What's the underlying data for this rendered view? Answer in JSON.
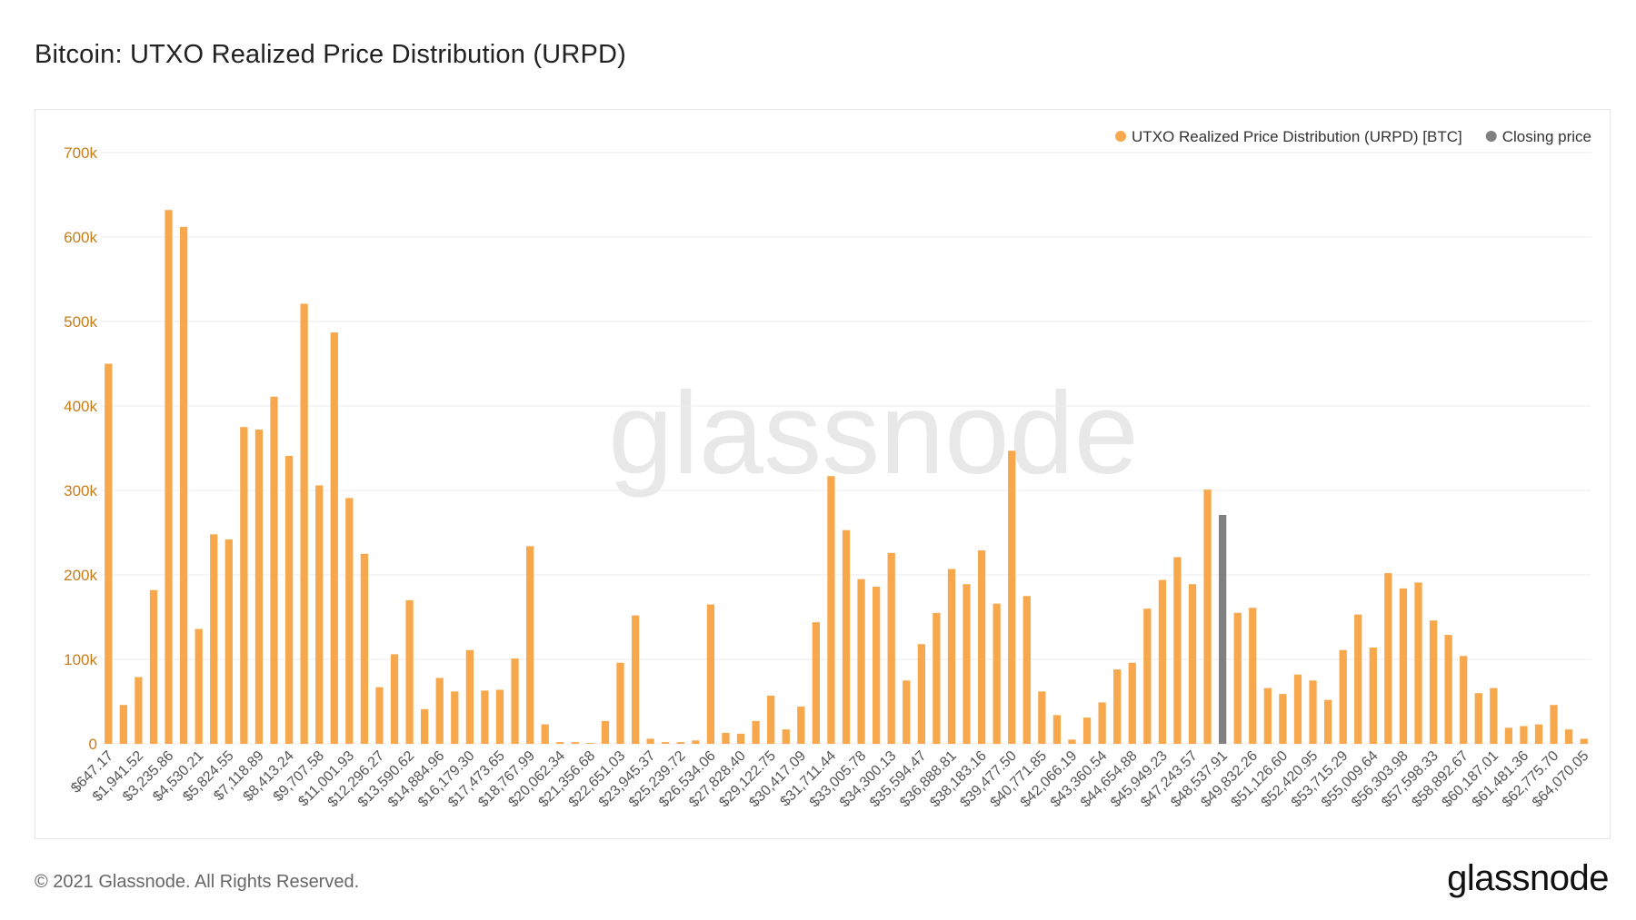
{
  "title": "Bitcoin: UTXO Realized Price Distribution (URPD)",
  "watermark": "glassnode",
  "footer": {
    "copyright": "© 2021 Glassnode. All Rights Reserved.",
    "logo": "glassnode"
  },
  "colors": {
    "bar": "#F7A84D",
    "closing": "#808080",
    "axis_text": "#C97D17",
    "grid": "#EEEEEE"
  },
  "chart_data": {
    "type": "bar",
    "legend": {
      "placement": "top-right",
      "items": [
        {
          "label": "UTXO Realized Price Distribution (URPD) [BTC]",
          "color": "#F7A84D"
        },
        {
          "label": "Closing price",
          "color": "#808080"
        }
      ]
    },
    "ylim": [
      0,
      700000
    ],
    "yticks": [
      {
        "value": 0,
        "label": "0"
      },
      {
        "value": 100000,
        "label": "100k"
      },
      {
        "value": 200000,
        "label": "200k"
      },
      {
        "value": 300000,
        "label": "300k"
      },
      {
        "value": 400000,
        "label": "400k"
      },
      {
        "value": 500000,
        "label": "500k"
      },
      {
        "value": 600000,
        "label": "600k"
      },
      {
        "value": 700000,
        "label": "700k"
      }
    ],
    "grid": true,
    "x_tick_labels": [
      "$647.17",
      "$1,941.52",
      "$3,235.86",
      "$4,530.21",
      "$5,824.55",
      "$7,118.89",
      "$8,413.24",
      "$9,707.58",
      "$11,001.93",
      "$12,296.27",
      "$13,590.62",
      "$14,884.96",
      "$16,179.30",
      "$17,473.65",
      "$18,767.99",
      "$20,062.34",
      "$21,356.68",
      "$22,651.03",
      "$23,945.37",
      "$25,239.72",
      "$26,534.06",
      "$27,828.40",
      "$29,122.75",
      "$30,417.09",
      "$31,711.44",
      "$33,005.78",
      "$34,300.13",
      "$35,594.47",
      "$36,888.81",
      "$38,183.16",
      "$39,477.50",
      "$40,771.85",
      "$42,066.19",
      "$43,360.54",
      "$44,654.88",
      "$45,949.23",
      "$47,243.57",
      "$48,537.91",
      "$49,832.26",
      "$51,126.60",
      "$52,420.95",
      "$53,715.29",
      "$55,009.64",
      "$56,303.98",
      "$57,598.33",
      "$58,892.67",
      "$60,187.01",
      "$61,481.36",
      "$62,775.70",
      "$64,070.05"
    ],
    "closing_index": 74,
    "values": [
      450000,
      46000,
      79000,
      182000,
      632000,
      612000,
      136000,
      248000,
      242000,
      375000,
      372000,
      411000,
      341000,
      521000,
      306000,
      487000,
      291000,
      225000,
      67000,
      106000,
      170000,
      41000,
      78000,
      62000,
      111000,
      63000,
      64000,
      101000,
      234000,
      23000,
      2000,
      2000,
      1000,
      27000,
      96000,
      152000,
      6000,
      2000,
      2000,
      4000,
      165000,
      13000,
      12000,
      27000,
      57000,
      17000,
      44000,
      144000,
      317000,
      253000,
      195000,
      186000,
      226000,
      75000,
      118000,
      155000,
      207000,
      189000,
      229000,
      166000,
      347000,
      175000,
      62000,
      34000,
      5000,
      31000,
      49000,
      88000,
      96000,
      160000,
      194000,
      221000,
      189000,
      301000,
      271000,
      155000,
      161000,
      66000,
      59000,
      82000,
      75000,
      52000,
      111000,
      153000,
      114000,
      202000,
      184000,
      191000,
      146000,
      129000,
      104000,
      60000,
      66000,
      19000,
      21000,
      23000,
      46000,
      17000,
      6000
    ]
  }
}
